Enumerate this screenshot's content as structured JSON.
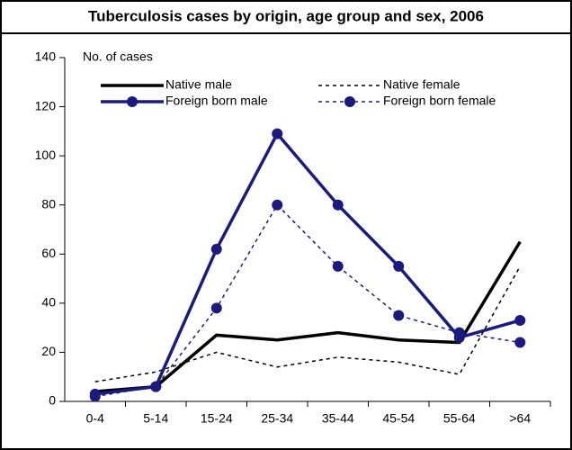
{
  "chart_data": {
    "type": "line",
    "title": "Tuberculosis cases by origin, age group and sex, 2006",
    "y_label": "No.  of cases",
    "categories": [
      "0-4",
      "5-14",
      "15-24",
      "25-34",
      "35-44",
      "45-54",
      "55-64",
      ">64"
    ],
    "series": [
      {
        "name": "Native male",
        "color": "#000000",
        "dash": false,
        "marker": false,
        "values": [
          4,
          6,
          27,
          25,
          28,
          25,
          24,
          65
        ]
      },
      {
        "name": "Native female",
        "color": "#000000",
        "dash": true,
        "marker": false,
        "values": [
          8,
          12,
          20,
          14,
          18,
          16,
          11,
          55
        ]
      },
      {
        "name": "Foreign born male",
        "color": "#1a1a80",
        "dash": false,
        "marker": true,
        "values": [
          3,
          6,
          62,
          109,
          80,
          55,
          26,
          33
        ]
      },
      {
        "name": "Foreign born female",
        "color": "#1a1a80",
        "dash": true,
        "marker": true,
        "values": [
          2,
          6,
          38,
          80,
          55,
          35,
          28,
          24
        ]
      }
    ],
    "ylim": [
      0,
      140
    ],
    "yticks": [
      0,
      20,
      40,
      60,
      80,
      100,
      120,
      140
    ]
  }
}
